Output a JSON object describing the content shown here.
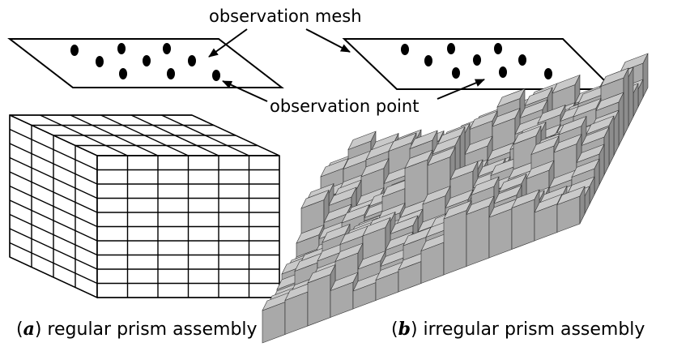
{
  "labels": {
    "observation_mesh": "observation mesh",
    "observation_point": "observation point"
  },
  "captions": {
    "a": {
      "open": "(",
      "letter": "a",
      "text": ") regular prism assembly"
    },
    "b": {
      "open": "(",
      "letter": "b",
      "text": ") irregular prism assembly"
    }
  },
  "colors": {
    "line": "#000000",
    "prism_top": "#c9c9c9",
    "prism_front": "#a9a9a9",
    "prism_side": "#8d8d8d"
  }
}
